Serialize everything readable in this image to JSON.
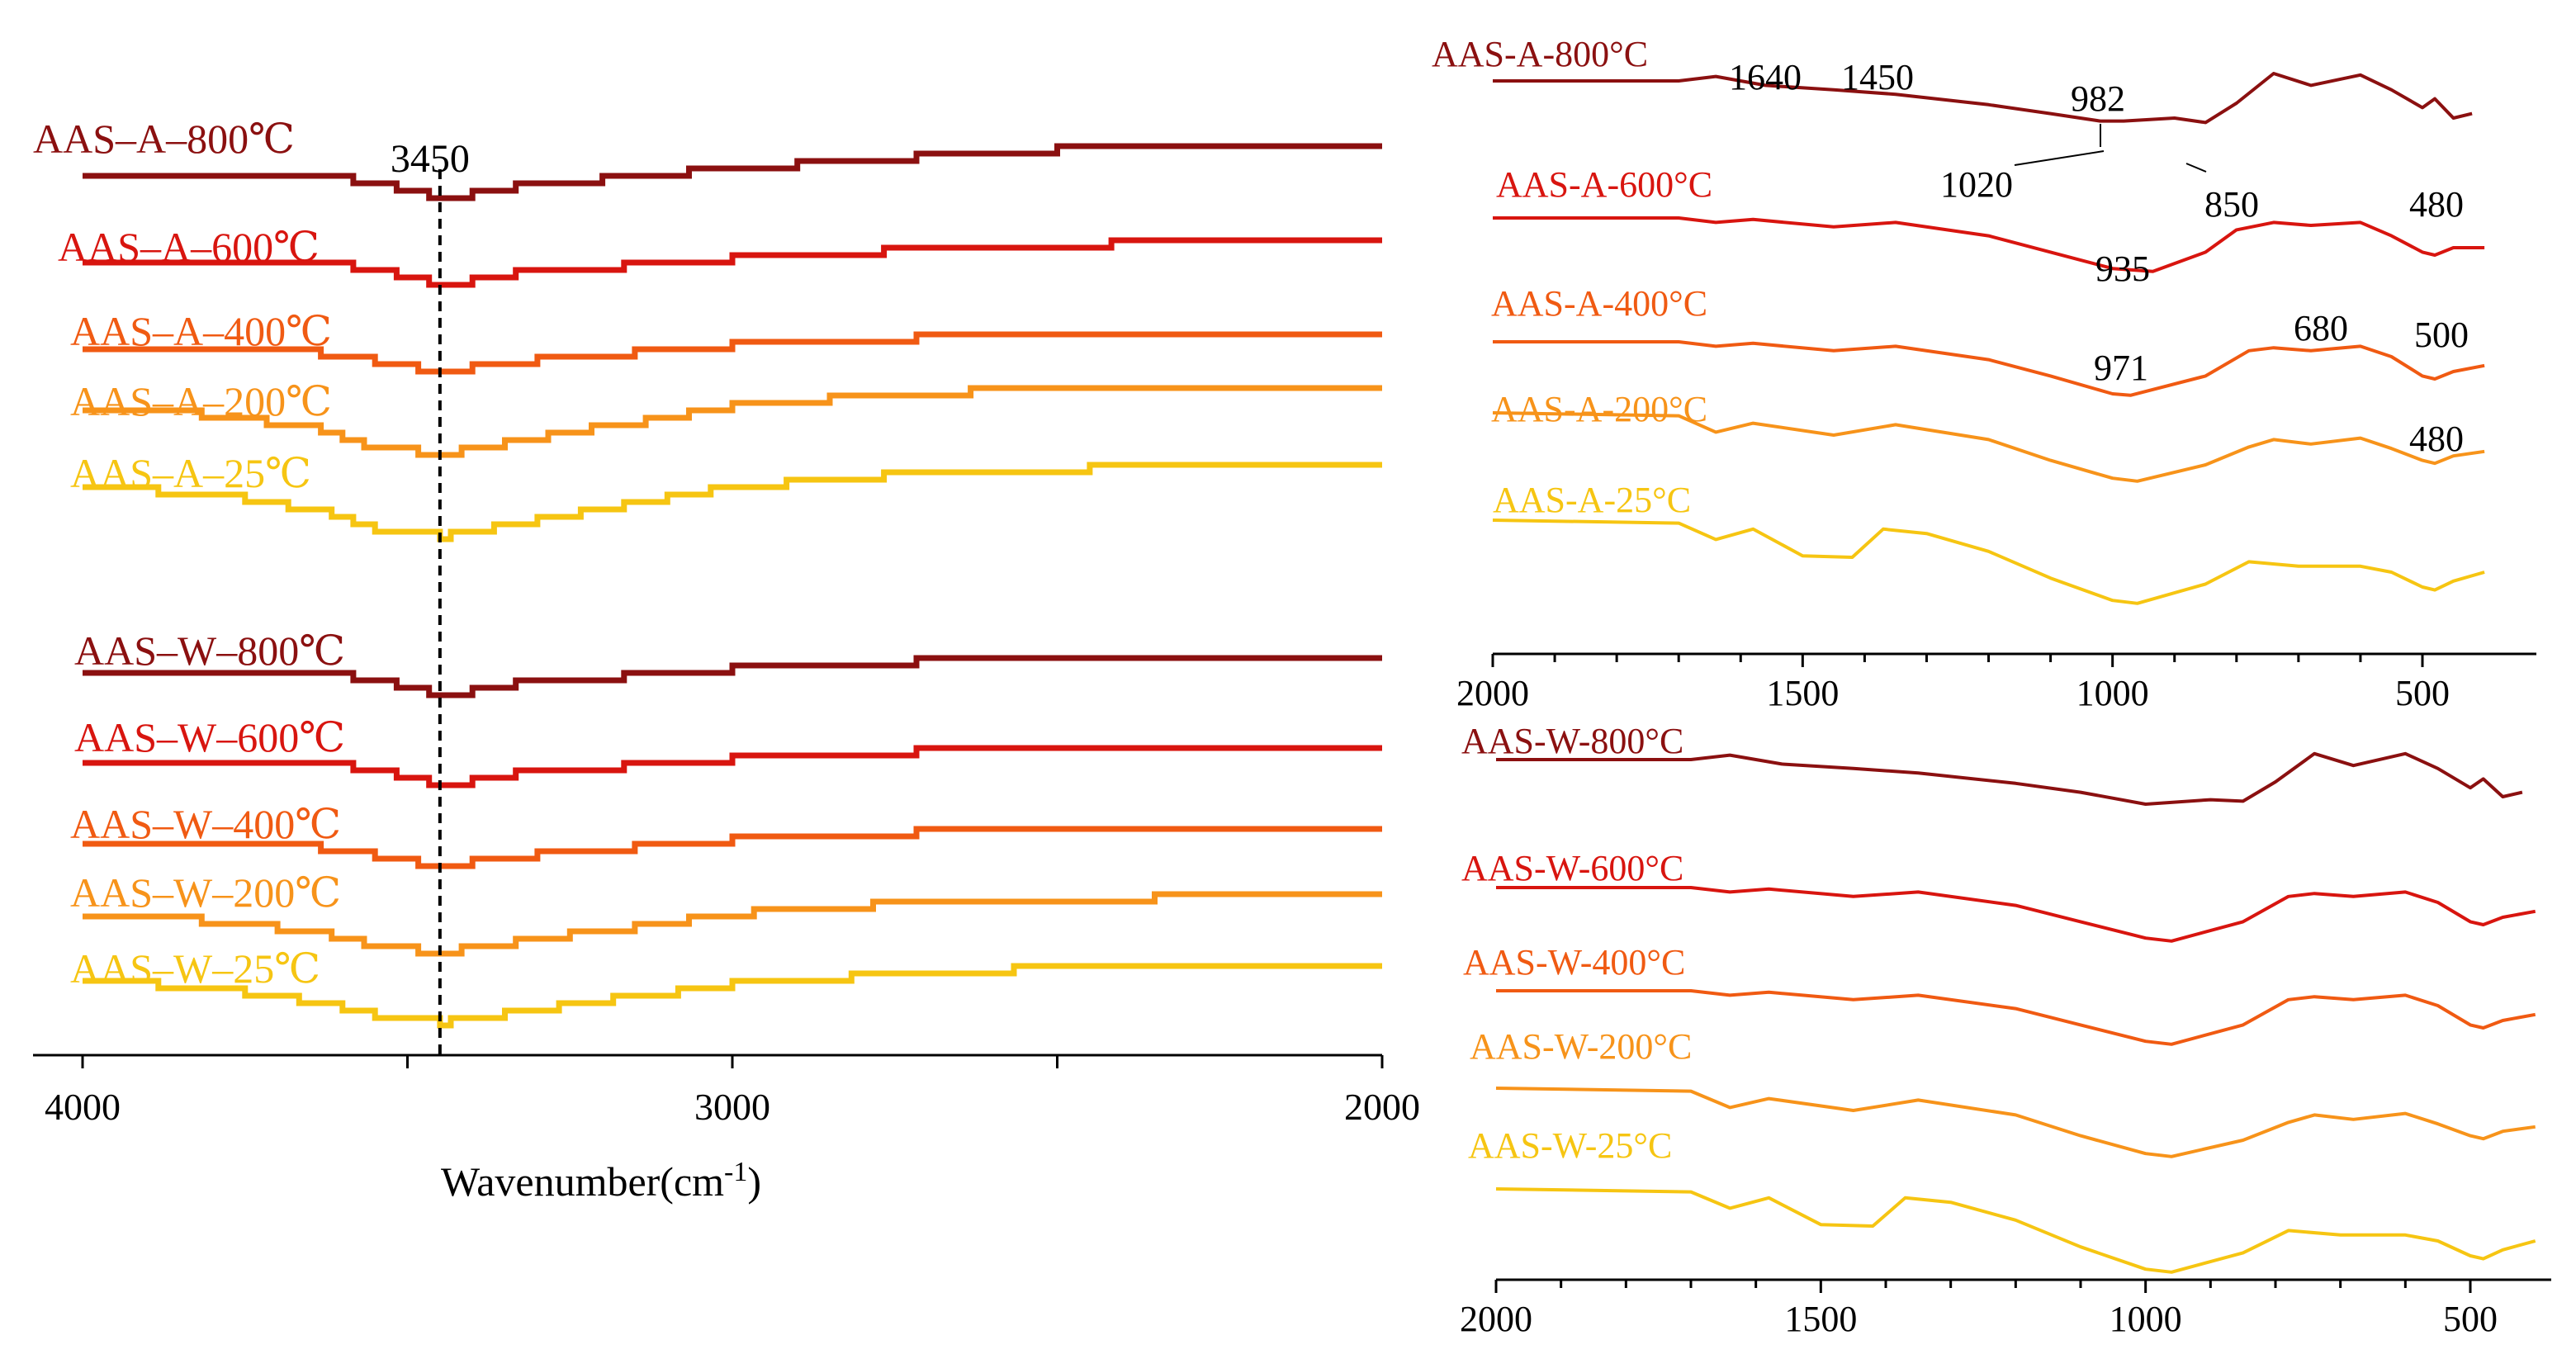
{
  "colors": {
    "c800": "#8B1010",
    "c600": "#D8150F",
    "c400": "#F05A12",
    "c200": "#F7931A",
    "c25": "#F6C512",
    "axis": "#000000"
  },
  "chart_data": [
    {
      "id": "left",
      "type": "line",
      "title": "",
      "xlabel": "Wavenumber(cm",
      "xlabel_sup": "-1",
      "ylabel": "",
      "xlim": [
        4000,
        2000
      ],
      "x_ticks": [
        "4000",
        "3000",
        "2000"
      ],
      "reference_line": {
        "x": 3450,
        "label": "3450"
      },
      "series": [
        {
          "name": "AAS–A–800℃",
          "color_key": "c800",
          "x": [
            4000,
            3650,
            3550,
            3450,
            3350,
            3000,
            2700,
            2300,
            2000
          ],
          "y": [
            0.0,
            0.0,
            -0.5,
            -1.5,
            -0.8,
            0.5,
            1.3,
            2.2,
            2.2
          ]
        },
        {
          "name": "AAS–A–600℃",
          "color_key": "c600",
          "x": [
            4000,
            3650,
            3550,
            3450,
            3350,
            3000,
            2700,
            2300,
            2000
          ],
          "y": [
            0.0,
            0.0,
            -0.5,
            -1.5,
            -0.8,
            0.3,
            0.9,
            1.4,
            1.5
          ]
        },
        {
          "name": "AAS–A–400℃",
          "color_key": "c400",
          "x": [
            4000,
            3650,
            3550,
            3450,
            3350,
            3000,
            2700,
            2300,
            2000
          ],
          "y": [
            0.0,
            -0.2,
            -0.8,
            -1.5,
            -0.9,
            0.3,
            0.8,
            1.1,
            1.1
          ]
        },
        {
          "name": "AAS–A–200℃",
          "color_key": "c200",
          "x": [
            4000,
            3800,
            3650,
            3550,
            3450,
            3350,
            3000,
            2700,
            2300,
            2000
          ],
          "y": [
            0.0,
            -0.3,
            -1.2,
            -2.5,
            -3.0,
            -2.2,
            0.3,
            1.2,
            1.5,
            1.5
          ]
        },
        {
          "name": "AAS–A–25℃",
          "color_key": "c25",
          "x": [
            4000,
            3800,
            3650,
            3550,
            3450,
            3350,
            3000,
            2700,
            2300,
            2000
          ],
          "y": [
            0.0,
            -0.5,
            -1.5,
            -2.8,
            -3.3,
            -2.5,
            0.0,
            1.0,
            1.4,
            1.4
          ]
        },
        {
          "name": "AAS–W–800℃",
          "color_key": "c800",
          "x": [
            4000,
            3650,
            3550,
            3450,
            3350,
            3000,
            2700,
            2300,
            2000
          ],
          "y": [
            0.0,
            0.0,
            -0.5,
            -1.5,
            -0.8,
            0.3,
            0.8,
            1.2,
            1.2
          ]
        },
        {
          "name": "AAS–W–600℃",
          "color_key": "c600",
          "x": [
            4000,
            3650,
            3550,
            3450,
            3350,
            3000,
            2700,
            2300,
            2000
          ],
          "y": [
            0.0,
            0.0,
            -0.5,
            -1.5,
            -0.8,
            0.3,
            0.8,
            1.2,
            1.2
          ]
        },
        {
          "name": "AAS–W–400℃",
          "color_key": "c400",
          "x": [
            4000,
            3650,
            3550,
            3450,
            3350,
            3000,
            2700,
            2300,
            2000
          ],
          "y": [
            0.0,
            -0.2,
            -0.8,
            -1.5,
            -0.9,
            0.3,
            0.8,
            1.1,
            1.1
          ]
        },
        {
          "name": "AAS–W–200℃",
          "color_key": "c200",
          "x": [
            4000,
            3800,
            3650,
            3550,
            3450,
            3350,
            3000,
            2700,
            2300,
            2000
          ],
          "y": [
            0.0,
            -0.3,
            -1.0,
            -2.0,
            -2.4,
            -1.8,
            0.2,
            1.0,
            1.3,
            1.3
          ]
        },
        {
          "name": "AAS–W–25℃",
          "color_key": "c25",
          "x": [
            4000,
            3800,
            3650,
            3550,
            3450,
            3350,
            3000,
            2700,
            2300,
            2000
          ],
          "y": [
            0.0,
            -0.5,
            -1.4,
            -2.4,
            -2.8,
            -2.2,
            -0.2,
            0.6,
            1.1,
            1.1
          ]
        }
      ]
    },
    {
      "id": "right-top",
      "type": "line",
      "title": "",
      "xlabel": "",
      "ylabel": "",
      "xlim": [
        2000,
        400
      ],
      "x_ticks": [
        "2000",
        "1500",
        "1000",
        "500"
      ],
      "annotations": [
        "1640",
        "1450",
        "982",
        "1020",
        "850",
        "480",
        "935",
        "680",
        "500",
        "971",
        "480"
      ],
      "series": [
        {
          "name": "AAS-A-800°C",
          "color_key": "c800",
          "x": [
            2000,
            1700,
            1640,
            1560,
            1450,
            1350,
            1200,
            1100,
            1020,
            982,
            900,
            850,
            800,
            740,
            680,
            600,
            550,
            500,
            480,
            450,
            420
          ],
          "y": [
            0,
            0,
            0.3,
            -0.3,
            -0.6,
            -0.9,
            -1.6,
            -2.2,
            -2.7,
            -2.7,
            -2.5,
            -2.8,
            -1.5,
            0.5,
            -0.3,
            0.4,
            -0.6,
            -1.8,
            -1.2,
            -2.5,
            -2.2
          ]
        },
        {
          "name": "AAS-A-600°C",
          "color_key": "c600",
          "x": [
            2000,
            1700,
            1640,
            1580,
            1450,
            1350,
            1200,
            1100,
            1000,
            935,
            850,
            800,
            740,
            680,
            600,
            550,
            500,
            480,
            450,
            400
          ],
          "y": [
            0,
            0,
            -0.3,
            -0.1,
            -0.6,
            -0.3,
            -1.2,
            -2.3,
            -3.4,
            -3.6,
            -2.3,
            -0.8,
            -0.3,
            -0.5,
            -0.3,
            -1.2,
            -2.3,
            -2.5,
            -2.0,
            -2.0
          ]
        },
        {
          "name": "AAS-A-400°C",
          "color_key": "c400",
          "x": [
            2000,
            1700,
            1640,
            1580,
            1450,
            1350,
            1200,
            1100,
            1000,
            971,
            850,
            780,
            740,
            680,
            600,
            550,
            500,
            480,
            450,
            400
          ],
          "y": [
            0,
            0,
            -0.3,
            -0.1,
            -0.6,
            -0.3,
            -1.2,
            -2.3,
            -3.5,
            -3.6,
            -2.3,
            -0.6,
            -0.4,
            -0.6,
            -0.3,
            -1.0,
            -2.3,
            -2.5,
            -2.0,
            -1.6
          ]
        },
        {
          "name": "AAS-A-200°C",
          "color_key": "c200",
          "x": [
            2000,
            1700,
            1640,
            1580,
            1450,
            1350,
            1200,
            1100,
            1000,
            960,
            850,
            780,
            740,
            680,
            600,
            550,
            500,
            480,
            450,
            400
          ],
          "y": [
            0,
            -0.2,
            -1.3,
            -0.7,
            -1.5,
            -0.8,
            -1.8,
            -3.2,
            -4.4,
            -4.6,
            -3.5,
            -2.3,
            -1.8,
            -2.1,
            -1.7,
            -2.4,
            -3.2,
            -3.4,
            -2.9,
            -2.6
          ]
        },
        {
          "name": "AAS-A-25°C",
          "color_key": "c25",
          "x": [
            2000,
            1700,
            1640,
            1580,
            1500,
            1420,
            1370,
            1300,
            1200,
            1100,
            1000,
            960,
            850,
            780,
            700,
            600,
            550,
            500,
            480,
            450,
            400
          ],
          "y": [
            0,
            -0.2,
            -1.3,
            -0.6,
            -2.4,
            -2.5,
            -0.6,
            -0.9,
            -2.1,
            -3.9,
            -5.4,
            -5.6,
            -4.3,
            -2.8,
            -3.1,
            -3.1,
            -3.5,
            -4.5,
            -4.7,
            -4.1,
            -3.5
          ]
        }
      ]
    },
    {
      "id": "right-bottom",
      "type": "line",
      "title": "",
      "xlabel": "",
      "ylabel": "",
      "xlim": [
        2000,
        400
      ],
      "x_ticks": [
        "2000",
        "1500",
        "1000",
        "500"
      ],
      "series": [
        {
          "name": "AAS-W-800°C",
          "color_key": "c800",
          "x": [
            2000,
            1700,
            1640,
            1560,
            1450,
            1350,
            1200,
            1100,
            1000,
            900,
            850,
            800,
            740,
            680,
            600,
            550,
            500,
            480,
            450,
            420
          ],
          "y": [
            0,
            0,
            0.3,
            -0.3,
            -0.6,
            -0.9,
            -1.6,
            -2.2,
            -3.0,
            -2.7,
            -2.8,
            -1.5,
            0.4,
            -0.4,
            0.4,
            -0.6,
            -1.9,
            -1.3,
            -2.5,
            -2.2
          ]
        },
        {
          "name": "AAS-W-600°C",
          "color_key": "c600",
          "x": [
            2000,
            1700,
            1640,
            1580,
            1450,
            1350,
            1200,
            1100,
            1000,
            960,
            850,
            780,
            740,
            680,
            600,
            550,
            500,
            480,
            450,
            400
          ],
          "y": [
            0,
            0,
            -0.3,
            -0.1,
            -0.6,
            -0.3,
            -1.2,
            -2.3,
            -3.4,
            -3.6,
            -2.3,
            -0.6,
            -0.4,
            -0.6,
            -0.3,
            -1.0,
            -2.3,
            -2.5,
            -2.0,
            -1.6
          ]
        },
        {
          "name": "AAS-W-400°C",
          "color_key": "c400",
          "x": [
            2000,
            1700,
            1640,
            1580,
            1450,
            1350,
            1200,
            1100,
            1000,
            960,
            850,
            780,
            740,
            680,
            600,
            550,
            500,
            480,
            450,
            400
          ],
          "y": [
            0,
            0,
            -0.3,
            -0.1,
            -0.6,
            -0.3,
            -1.2,
            -2.3,
            -3.4,
            -3.6,
            -2.3,
            -0.6,
            -0.4,
            -0.6,
            -0.3,
            -1.0,
            -2.3,
            -2.5,
            -2.0,
            -1.6
          ]
        },
        {
          "name": "AAS-W-200°C",
          "color_key": "c200",
          "x": [
            2000,
            1700,
            1640,
            1580,
            1450,
            1350,
            1200,
            1100,
            1000,
            960,
            850,
            780,
            740,
            680,
            600,
            550,
            500,
            480,
            450,
            400
          ],
          "y": [
            0,
            -0.2,
            -1.3,
            -0.7,
            -1.5,
            -0.8,
            -1.8,
            -3.2,
            -4.4,
            -4.6,
            -3.5,
            -2.3,
            -1.8,
            -2.1,
            -1.7,
            -2.4,
            -3.2,
            -3.4,
            -2.9,
            -2.6
          ]
        },
        {
          "name": "AAS-W-25°C",
          "color_key": "c25",
          "x": [
            2000,
            1700,
            1640,
            1580,
            1500,
            1420,
            1370,
            1300,
            1200,
            1100,
            1000,
            960,
            850,
            780,
            700,
            600,
            550,
            500,
            480,
            450,
            400
          ],
          "y": [
            0,
            -0.2,
            -1.3,
            -0.6,
            -2.4,
            -2.5,
            -0.6,
            -0.9,
            -2.1,
            -3.9,
            -5.4,
            -5.6,
            -4.3,
            -2.8,
            -3.1,
            -3.1,
            -3.5,
            -4.5,
            -4.7,
            -4.1,
            -3.5
          ]
        }
      ]
    }
  ]
}
